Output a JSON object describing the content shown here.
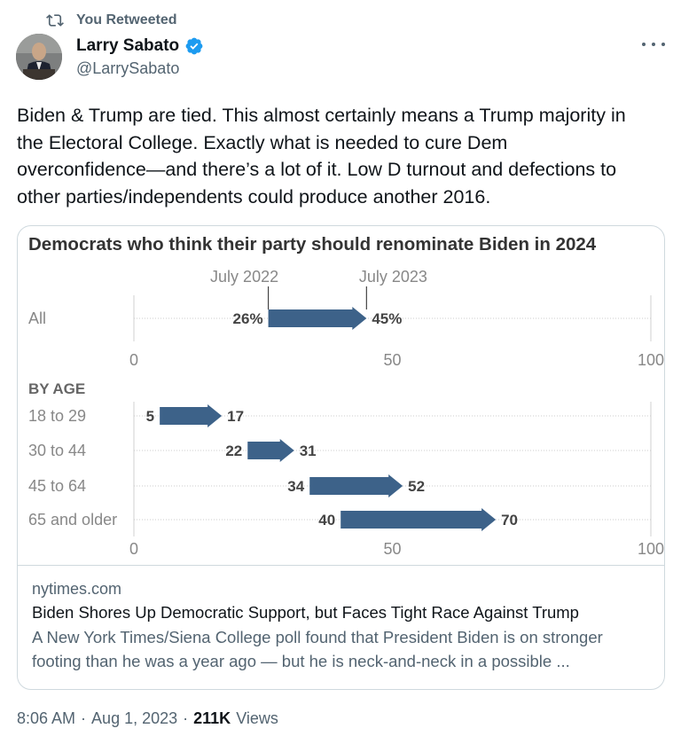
{
  "retweet": {
    "label": "You Retweeted"
  },
  "author": {
    "name": "Larry Sabato",
    "handle": "@LarrySabato"
  },
  "tweet": {
    "lines": [
      "Biden & Trump are tied. This almost certainly means a Trump majority in",
      "the Electoral College. Exactly what is needed to cure Dem",
      "overconfidence—and there’s a lot of it. Low D turnout and defections to",
      "other parties/independents could produce another 2016."
    ]
  },
  "chart_data": {
    "type": "bar",
    "title": "Democrats who think their party should renominate Biden in 2024",
    "from_label": "July 2022",
    "to_label": "July 2023",
    "section_label": "BY AGE",
    "xlim": [
      0,
      100
    ],
    "xticks": [
      0,
      50,
      100
    ],
    "color": "#3d6289",
    "overall": {
      "category": "All",
      "from": 26,
      "to": 45,
      "from_label": "26%",
      "to_label": "45%"
    },
    "by_age": [
      {
        "category": "18 to 29",
        "from": 5,
        "to": 17
      },
      {
        "category": "30 to 44",
        "from": 22,
        "to": 31
      },
      {
        "category": "45 to 64",
        "from": 34,
        "to": 52
      },
      {
        "category": "65 and older",
        "from": 40,
        "to": 70
      }
    ]
  },
  "card": {
    "domain": "nytimes.com",
    "title": "Biden Shores Up Democratic Support, but Faces Tight Race Against Trump",
    "description_lines": [
      "A New York Times/Siena College poll found that President Biden is on stronger",
      "footing than he was a year ago — but he is neck-and-neck in a possible ..."
    ]
  },
  "meta": {
    "time": "8:06 AM",
    "sep1": "·",
    "date": "Aug 1, 2023",
    "sep2": "·",
    "views_count": "211K",
    "views_label": "Views"
  },
  "colors": {
    "accent": "#1d9bf0",
    "secondary_text": "#536471",
    "border": "#cfd9de"
  }
}
